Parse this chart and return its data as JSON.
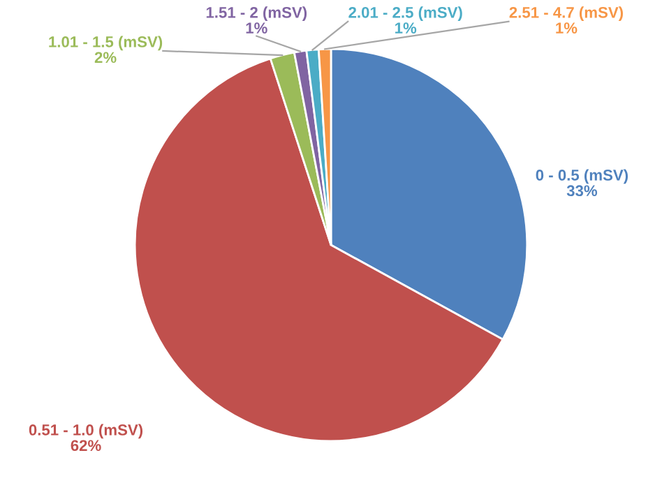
{
  "chart_data": {
    "type": "pie",
    "categories": [
      "0 - 0.5 (mSV)",
      "0.51 - 1.0 (mSV)",
      "1.01 - 1.5 (mSV)",
      "1.51 - 2 (mSV)",
      "2.01 - 2.5 (mSV)",
      "2.51 - 4.7 (mSV)"
    ],
    "values": [
      33,
      62,
      2,
      1,
      1,
      1
    ],
    "colors": [
      "#4f81bd",
      "#c0504d",
      "#9bbb59",
      "#8064a2",
      "#4bacc6",
      "#f79646"
    ],
    "value_labels": [
      "33%",
      "62%",
      "2%",
      "1%",
      "1%",
      "1%"
    ],
    "legend": false
  }
}
